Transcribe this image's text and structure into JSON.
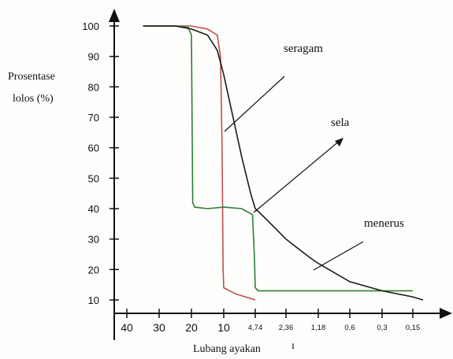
{
  "chart_data": {
    "type": "line",
    "xlabel": "Lubang ayakan",
    "ylabel": "Prosentase lolos (%)",
    "ylabel_lines": [
      "Prosentase",
      "lolos (%)"
    ],
    "x_ticks": [
      "40",
      "30",
      "20",
      "10",
      "4,74",
      "2,36",
      "1,18",
      "0,6",
      "0,3",
      "0,15"
    ],
    "y_ticks": [
      "100",
      "90",
      "80",
      "70",
      "60",
      "50",
      "40",
      "30",
      "20",
      "10"
    ],
    "ylim": [
      10,
      100
    ],
    "grid": false,
    "legend": "none",
    "x_extra_mark": "ı",
    "series": [
      {
        "name": "seragam",
        "color": "#c0504d",
        "points": [
          [
            35,
            100
          ],
          [
            25,
            100
          ],
          [
            20,
            100
          ],
          [
            15,
            99
          ],
          [
            12,
            97
          ],
          [
            11,
            90
          ],
          [
            10.5,
            60
          ],
          [
            10.2,
            20
          ],
          [
            10,
            14
          ],
          [
            8,
            12
          ],
          [
            4.74,
            10
          ]
        ]
      },
      {
        "name": "sela",
        "color": "#2e7d32",
        "points": [
          [
            35,
            100
          ],
          [
            25,
            100
          ],
          [
            21,
            99.5
          ],
          [
            20,
            97
          ],
          [
            19.8,
            70
          ],
          [
            19.6,
            42
          ],
          [
            19,
            40.5
          ],
          [
            15,
            40
          ],
          [
            10,
            40.5
          ],
          [
            7,
            40
          ],
          [
            5.2,
            38
          ],
          [
            4.9,
            25
          ],
          [
            4.74,
            14
          ],
          [
            4.5,
            13
          ],
          [
            2.36,
            13
          ],
          [
            1.18,
            13
          ],
          [
            0.6,
            13
          ],
          [
            0.3,
            13
          ],
          [
            0.15,
            13
          ]
        ]
      },
      {
        "name": "menerus",
        "color": "#1a1a1a",
        "points": [
          [
            35,
            100
          ],
          [
            25,
            100
          ],
          [
            20,
            99
          ],
          [
            15,
            97
          ],
          [
            12,
            92
          ],
          [
            10,
            84
          ],
          [
            9,
            75
          ],
          [
            7,
            57
          ],
          [
            5.5,
            45
          ],
          [
            4.74,
            40
          ],
          [
            4,
            37
          ],
          [
            2.36,
            30
          ],
          [
            1.5,
            24
          ],
          [
            1.18,
            22
          ],
          [
            0.6,
            16
          ],
          [
            0.3,
            13
          ],
          [
            0.15,
            11
          ],
          [
            0.1,
            10
          ]
        ]
      }
    ],
    "annotations": [
      {
        "text": "seragam"
      },
      {
        "text": "sela"
      },
      {
        "text": "menerus"
      }
    ]
  }
}
